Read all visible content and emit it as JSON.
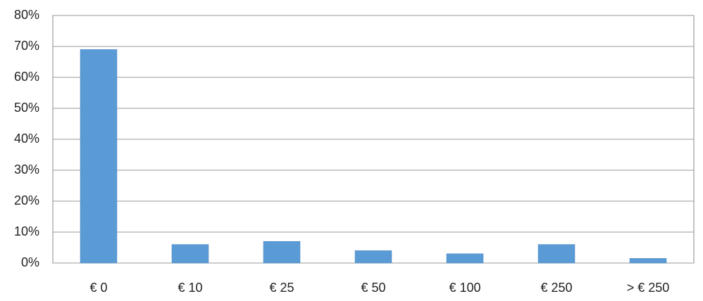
{
  "chart_data": {
    "type": "bar",
    "categories": [
      "€ 0",
      "€ 10",
      "€ 25",
      "€ 50",
      "€ 100",
      "€ 250",
      "> € 250"
    ],
    "values": [
      69,
      6,
      7,
      4,
      3,
      6,
      1.5
    ],
    "color": "#5b9bd5",
    "ylim": [
      0,
      80
    ],
    "yticks": [
      {
        "value": 0,
        "label": "0%"
      },
      {
        "value": 10,
        "label": "10%"
      },
      {
        "value": 20,
        "label": "20%"
      },
      {
        "value": 30,
        "label": "30%"
      },
      {
        "value": 40,
        "label": "40%"
      },
      {
        "value": 50,
        "label": "50%"
      },
      {
        "value": 60,
        "label": "60%"
      },
      {
        "value": 70,
        "label": "70%"
      },
      {
        "value": 80,
        "label": "80%"
      }
    ],
    "grid": true
  }
}
